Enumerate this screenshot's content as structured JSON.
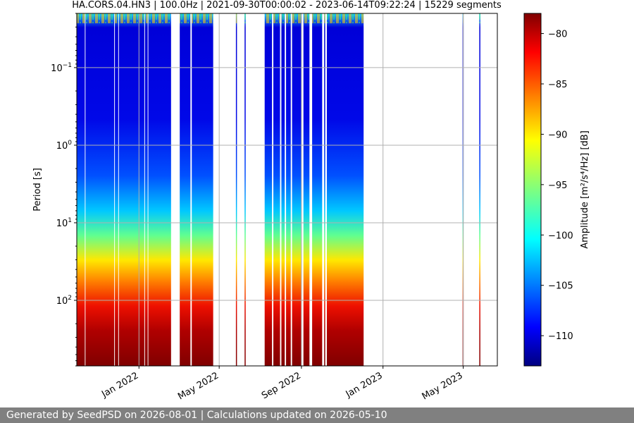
{
  "chart_data": {
    "type": "heatmap",
    "title": "HA.CORS.04.HN3 | 100.0Hz | 2021-09-30T00:00:02 - 2023-06-14T09:22:24 | 15229 segments",
    "xlabel": "",
    "ylabel": "Period [s]",
    "x_range": [
      "2021-09-30",
      "2023-06-21"
    ],
    "y_scale": "log",
    "y_range": [
      0.02,
      700
    ],
    "y_inverted": true,
    "y_ticks": [
      {
        "value": 0.1,
        "base": "10",
        "exp": "−1"
      },
      {
        "value": 1,
        "base": "10",
        "exp": "0"
      },
      {
        "value": 10,
        "base": "10",
        "exp": "1"
      },
      {
        "value": 100,
        "base": "10",
        "exp": "2"
      }
    ],
    "x_ticks": [
      {
        "date": "2022-01-01",
        "label": "Jan 2022"
      },
      {
        "date": "2022-05-01",
        "label": "May 2022"
      },
      {
        "date": "2022-09-01",
        "label": "Sep 2022"
      },
      {
        "date": "2023-01-01",
        "label": "Jan 2023"
      },
      {
        "date": "2023-05-01",
        "label": "May 2023"
      }
    ],
    "grid": true,
    "colormap": "jet",
    "colorbar": {
      "label": "Amplitude [m²/s⁴/Hz] [dB]",
      "range": [
        -113,
        -78
      ],
      "ticks": [
        -80,
        -85,
        -90,
        -95,
        -100,
        -105,
        -110
      ]
    },
    "data_segments": [
      {
        "start": "2021-09-30",
        "end": "2021-10-12"
      },
      {
        "start": "2021-10-13",
        "end": "2021-11-25"
      },
      {
        "start": "2021-11-26",
        "end": "2021-12-01"
      },
      {
        "start": "2021-12-02",
        "end": "2022-01-09"
      },
      {
        "start": "2022-01-10",
        "end": "2022-01-14"
      },
      {
        "start": "2022-01-15",
        "end": "2022-02-18"
      },
      {
        "start": "2022-03-03",
        "end": "2022-03-19"
      },
      {
        "start": "2022-03-21",
        "end": "2022-04-22"
      },
      {
        "start": "2022-05-26",
        "end": "2022-05-27"
      },
      {
        "start": "2022-06-08",
        "end": "2022-06-09"
      },
      {
        "start": "2022-07-08",
        "end": "2022-07-19"
      },
      {
        "start": "2022-07-21",
        "end": "2022-07-31"
      },
      {
        "start": "2022-08-02",
        "end": "2022-08-07"
      },
      {
        "start": "2022-08-09",
        "end": "2022-08-16"
      },
      {
        "start": "2022-08-18",
        "end": "2022-09-01"
      },
      {
        "start": "2022-09-04",
        "end": "2022-09-13"
      },
      {
        "start": "2022-09-17",
        "end": "2022-10-02"
      },
      {
        "start": "2022-10-05",
        "end": "2022-10-06"
      },
      {
        "start": "2022-10-09",
        "end": "2022-12-03"
      },
      {
        "start": "2023-04-30",
        "end": "2023-05-01"
      },
      {
        "start": "2023-05-25",
        "end": "2023-05-26"
      }
    ]
  },
  "footer": {
    "text": "Generated by SeedPSD on 2026-08-01 | Calculations updated on 2026-05-10"
  }
}
